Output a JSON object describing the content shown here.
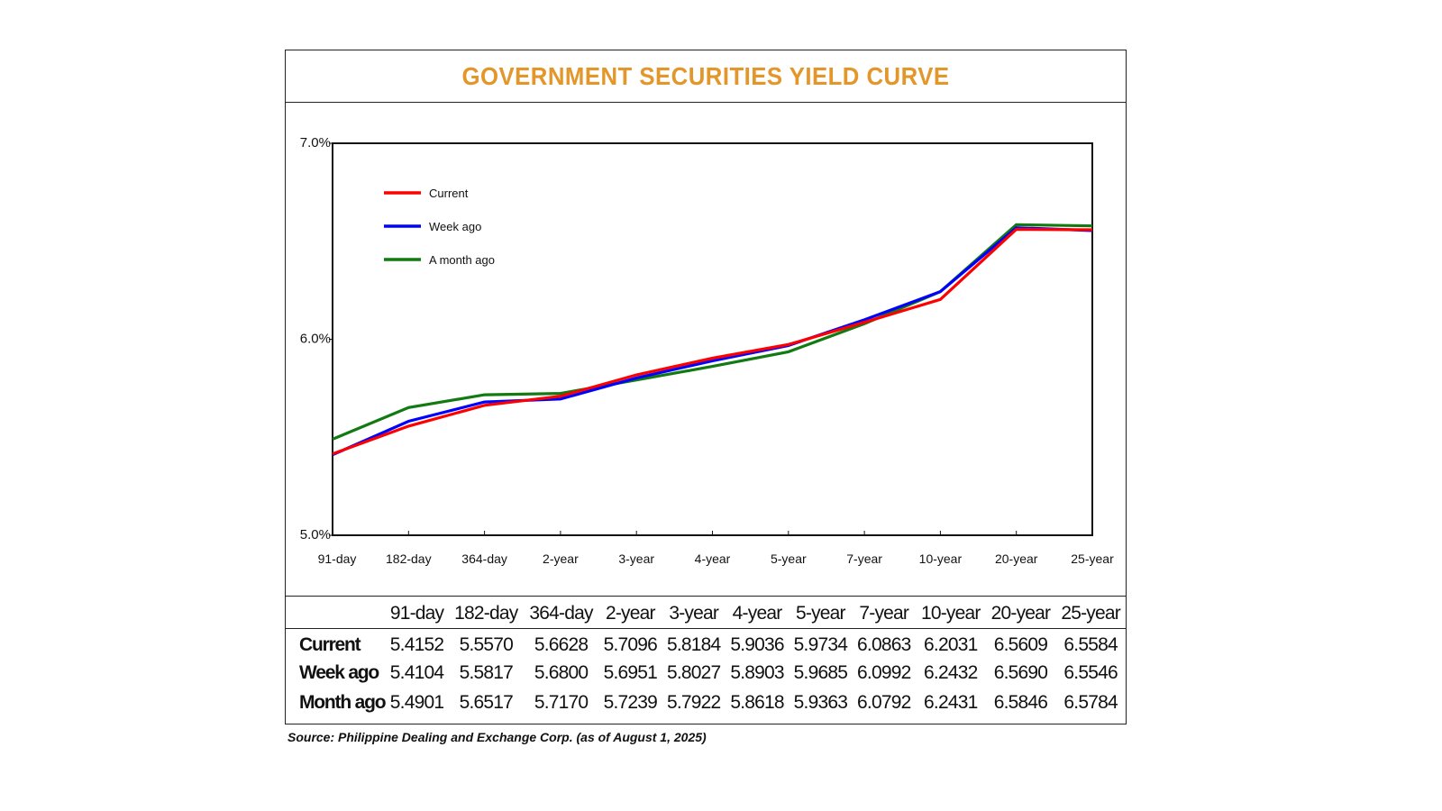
{
  "chart_data": {
    "type": "line",
    "title": "GOVERNMENT SECURITIES YIELD CURVE",
    "xlabel": "",
    "ylabel": "",
    "categories": [
      "91-day",
      "182-day",
      "364-day",
      "2-year",
      "3-year",
      "4-year",
      "5-year",
      "7-year",
      "10-year",
      "20-year",
      "25-year"
    ],
    "ylim": [
      5.0,
      7.0
    ],
    "yticks": [
      5.0,
      6.0,
      7.0
    ],
    "ytick_labels": [
      "5.0%",
      "6.0%",
      "7.0%"
    ],
    "grid": false,
    "legend_position": "top-left",
    "series": [
      {
        "name": "Current",
        "legend_label": "Current",
        "color": "#ff0000",
        "values": [
          5.4152,
          5.557,
          5.6628,
          5.7096,
          5.8184,
          5.9036,
          5.9734,
          6.0863,
          6.2031,
          6.5609,
          6.5584
        ]
      },
      {
        "name": "Week ago",
        "legend_label": "Week ago",
        "color": "#0000ff",
        "values": [
          5.4104,
          5.5817,
          5.68,
          5.6951,
          5.8027,
          5.8903,
          5.9685,
          6.0992,
          6.2432,
          6.569,
          6.5546
        ]
      },
      {
        "name": "Month ago",
        "legend_label": "A month ago",
        "color": "#117a11",
        "values": [
          5.4901,
          5.6517,
          5.717,
          5.7239,
          5.7922,
          5.8618,
          5.9363,
          6.0792,
          6.2431,
          6.5846,
          6.5784
        ]
      }
    ]
  },
  "table": {
    "headers": [
      "91-day",
      "182-day",
      "364-day",
      "2-year",
      "3-year",
      "4-year",
      "5-year",
      "7-year",
      "10-year",
      "20-year",
      "25-year"
    ],
    "rows": [
      {
        "label": "Current",
        "values": [
          "5.4152",
          "5.5570",
          "5.6628",
          "5.7096",
          "5.8184",
          "5.9036",
          "5.9734",
          "6.0863",
          "6.2031",
          "6.5609",
          "6.5584"
        ]
      },
      {
        "label": "Week ago",
        "values": [
          "5.4104",
          "5.5817",
          "5.6800",
          "5.6951",
          "5.8027",
          "5.8903",
          "5.9685",
          "6.0992",
          "6.2432",
          "6.5690",
          "6.5546"
        ]
      },
      {
        "label": "Month ago",
        "values": [
          "5.4901",
          "5.6517",
          "5.7170",
          "5.7239",
          "5.7922",
          "5.8618",
          "5.9363",
          "6.0792",
          "6.2431",
          "6.5846",
          "6.5784"
        ]
      }
    ]
  },
  "source": "Source: Philippine Dealing and Exchange Corp. (as of August 1, 2025)",
  "colors": {
    "title": "#e3962a",
    "frame": "#222222"
  }
}
